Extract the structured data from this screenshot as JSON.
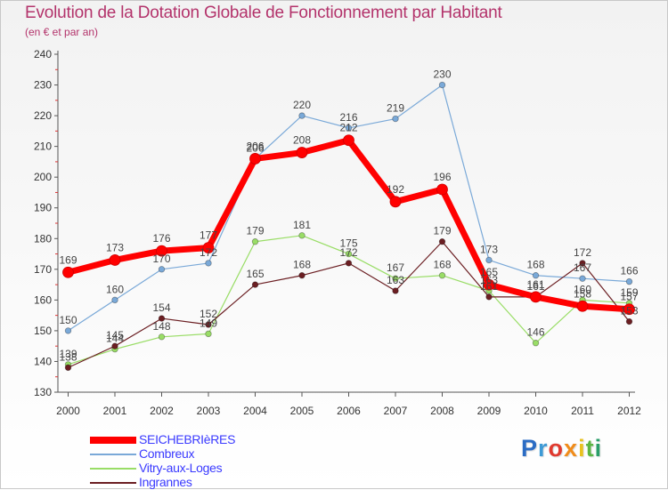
{
  "header": {
    "title": "Evolution de la Dotation Globale de Fonctionnement par Habitant",
    "subtitle": "(en € et par an)"
  },
  "brand": {
    "logo_text": "Proxiti"
  },
  "chart_data": {
    "type": "line",
    "title": "Evolution de la Dotation Globale de Fonctionnement par Habitant",
    "subtitle": "(en € et par an)",
    "xlabel": "",
    "ylabel": "",
    "x": [
      "2000",
      "2001",
      "2002",
      "2003",
      "2004",
      "2005",
      "2006",
      "2007",
      "2008",
      "2009",
      "2010",
      "2011",
      "2012"
    ],
    "ylim": [
      130,
      240
    ],
    "yticks": [
      130,
      140,
      150,
      160,
      170,
      180,
      190,
      200,
      210,
      220,
      230,
      240
    ],
    "grid": false,
    "legend_position": "bottom-left",
    "series": [
      {
        "name": "SEICHEBRIèRES",
        "color": "#ff0000",
        "values": [
          169,
          173,
          176,
          177,
          206,
          208,
          212,
          192,
          196,
          165,
          161,
          158,
          157
        ]
      },
      {
        "name": "Combreux",
        "color": "#7aa9d8",
        "values": [
          150,
          160,
          170,
          172,
          206,
          220,
          216,
          219,
          230,
          173,
          168,
          167,
          166
        ]
      },
      {
        "name": "Vitry-aux-Loges",
        "color": "#99dd66",
        "values": [
          139,
          144,
          148,
          149,
          179,
          181,
          175,
          167,
          168,
          163,
          146,
          160,
          159
        ]
      },
      {
        "name": "Ingrannes",
        "color": "#6b1e22",
        "values": [
          138,
          145,
          154,
          152,
          165,
          168,
          172,
          163,
          179,
          161,
          161,
          172,
          153
        ]
      }
    ]
  }
}
